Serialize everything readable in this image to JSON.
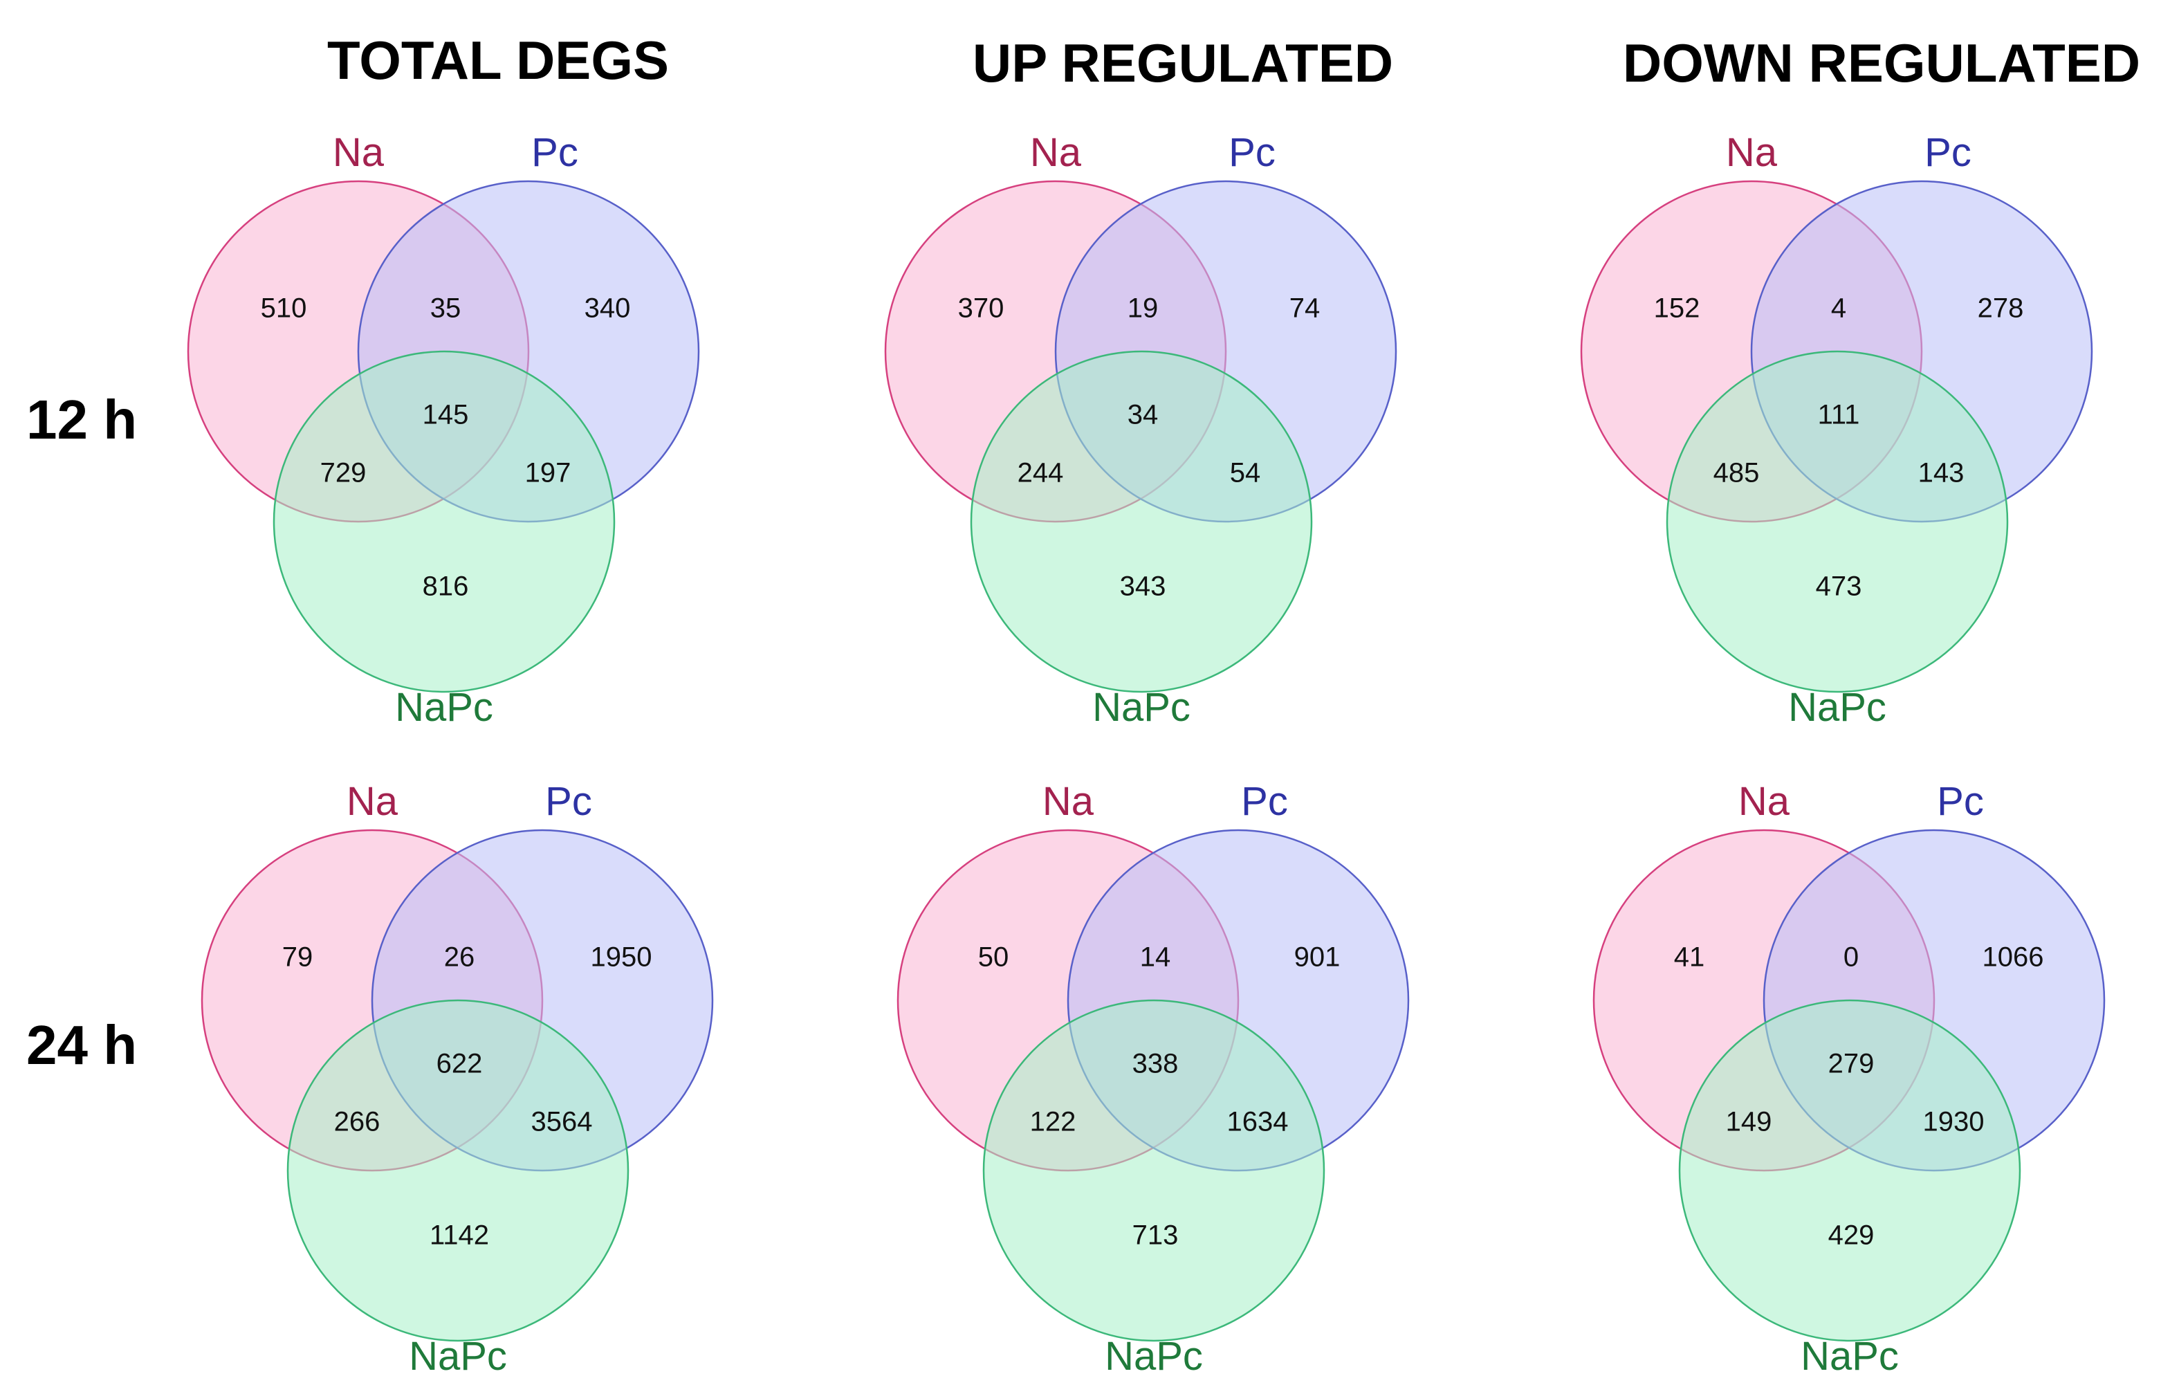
{
  "columns": [
    "TOTAL DEGS",
    "UP REGULATED",
    "DOWN REGULATED"
  ],
  "rows": [
    "12 h",
    "24 h"
  ],
  "set_labels": {
    "a": "Na",
    "b": "Pc",
    "c": "NaPc"
  },
  "colors": {
    "a_fill": "#f9b4d4",
    "a_stroke": "#d6407f",
    "a_label": "#a3224f",
    "b_fill": "#b9bff7",
    "b_stroke": "#5860c9",
    "b_label": "#2d32a3",
    "c_fill": "#a8f0c8",
    "c_stroke": "#3cb87a",
    "c_label": "#1f7a3a"
  },
  "venns": [
    {
      "row": "12 h",
      "column": "TOTAL DEGS",
      "a_only": "510",
      "ab_only": "35",
      "b_only": "340",
      "abc": "145",
      "ac_only": "729",
      "bc_only": "197",
      "c_only": "816"
    },
    {
      "row": "12 h",
      "column": "UP REGULATED",
      "a_only": "370",
      "ab_only": "19",
      "b_only": "74",
      "abc": "34",
      "ac_only": "244",
      "bc_only": "54",
      "c_only": "343"
    },
    {
      "row": "12 h",
      "column": "DOWN REGULATED",
      "a_only": "152",
      "ab_only": "4",
      "b_only": "278",
      "abc": "111",
      "ac_only": "485",
      "bc_only": "143",
      "c_only": "473"
    },
    {
      "row": "24 h",
      "column": "TOTAL DEGS",
      "a_only": "79",
      "ab_only": "26",
      "b_only": "1950",
      "abc": "622",
      "ac_only": "266",
      "bc_only": "3564",
      "c_only": "1142"
    },
    {
      "row": "24 h",
      "column": "UP REGULATED",
      "a_only": "50",
      "ab_only": "14",
      "b_only": "901",
      "abc": "338",
      "ac_only": "122",
      "bc_only": "1634",
      "c_only": "713"
    },
    {
      "row": "24 h",
      "column": "DOWN REGULATED",
      "a_only": "41",
      "ab_only": "0",
      "b_only": "1066",
      "abc": "279",
      "ac_only": "149",
      "bc_only": "1930",
      "c_only": "429"
    }
  ]
}
